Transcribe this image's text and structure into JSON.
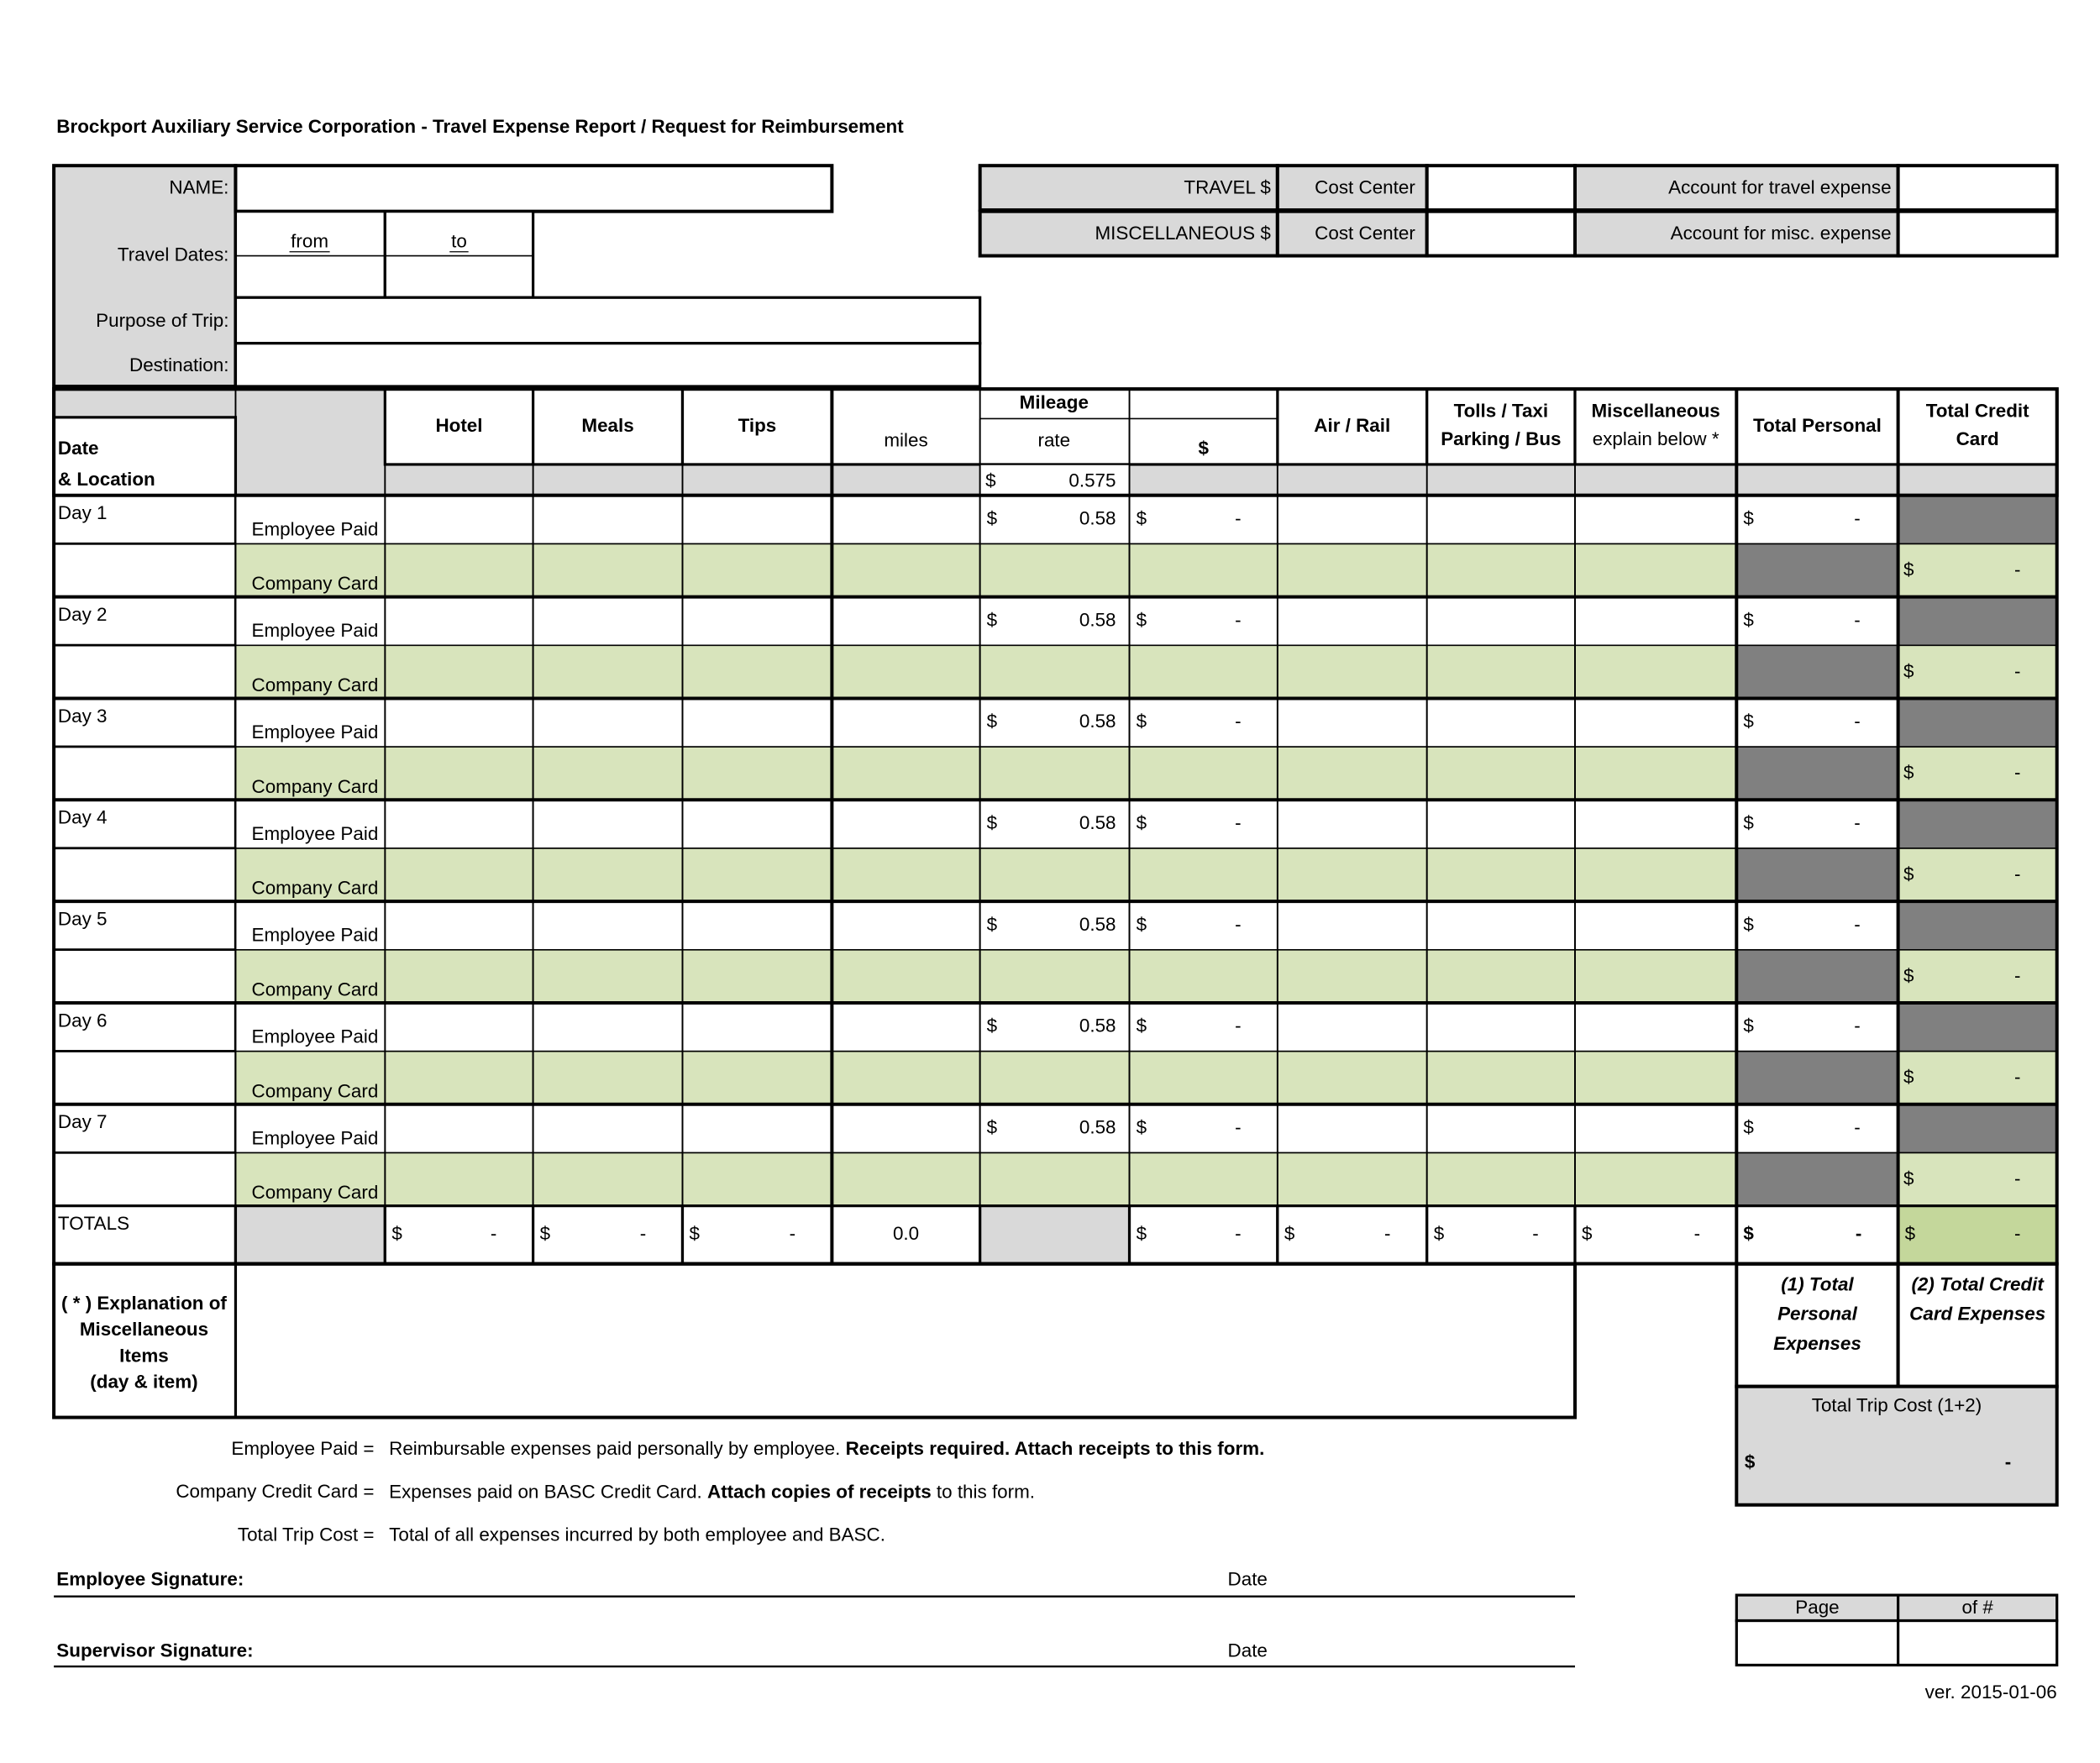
{
  "header": {
    "title": "Brockport Auxiliary Service Corporation  - Travel Expense Report / Request for Reimbursement"
  },
  "info": {
    "name_label": "NAME:",
    "travel_dates_label": "Travel Dates:",
    "from": "from",
    "to": "to",
    "purpose_label": "Purpose of Trip:",
    "destination_label": "Destination:"
  },
  "accounts": {
    "travel": "TRAVEL $",
    "misc": "MISCELLANEOUS $",
    "cost_center_travel": "Cost Center",
    "cost_center_misc": "Cost Center",
    "account_travel": "Account for travel expense",
    "account_misc": "Account for misc. expense"
  },
  "table": {
    "date_header": "Date",
    "location_header": "& Location",
    "columns": {
      "hotel": [
        "Hotel"
      ],
      "meals": [
        "Meals"
      ],
      "tips": [
        "Tips"
      ],
      "air_rail": [
        "Air / Rail"
      ],
      "tolls": [
        "Tolls / Taxi",
        "Parking / Bus"
      ],
      "misc": [
        "Miscellaneous",
        "explain below *"
      ],
      "personal": [
        "Total Personal"
      ],
      "credit": [
        "Total Credit",
        "Card"
      ]
    },
    "mileage": {
      "header": "Mileage",
      "miles": "miles",
      "rate": "rate",
      "dollar": "$",
      "rate_currency": "$",
      "rate_value": "0.575"
    },
    "days": [
      {
        "label": "Day 1",
        "employee_paid": "Employee Paid",
        "company_card": "Company Card",
        "rate_currency": "$",
        "rate": "0.58",
        "mileage_currency": "$",
        "mileage": "-",
        "personal_currency": "$",
        "personal": "-",
        "credit_currency": "$",
        "credit": "-"
      },
      {
        "label": "Day 2",
        "employee_paid": "Employee Paid",
        "company_card": "Company Card",
        "rate_currency": "$",
        "rate": "0.58",
        "mileage_currency": "$",
        "mileage": "-",
        "personal_currency": "$",
        "personal": "-",
        "credit_currency": "$",
        "credit": "-"
      },
      {
        "label": "Day 3",
        "employee_paid": "Employee Paid",
        "company_card": "Company Card",
        "rate_currency": "$",
        "rate": "0.58",
        "mileage_currency": "$",
        "mileage": "-",
        "personal_currency": "$",
        "personal": "-",
        "credit_currency": "$",
        "credit": "-"
      },
      {
        "label": "Day 4",
        "employee_paid": "Employee Paid",
        "company_card": "Company Card",
        "rate_currency": "$",
        "rate": "0.58",
        "mileage_currency": "$",
        "mileage": "-",
        "personal_currency": "$",
        "personal": "-",
        "credit_currency": "$",
        "credit": "-"
      },
      {
        "label": "Day 5",
        "employee_paid": "Employee Paid",
        "company_card": "Company Card",
        "rate_currency": "$",
        "rate": "0.58",
        "mileage_currency": "$",
        "mileage": "-",
        "personal_currency": "$",
        "personal": "-",
        "credit_currency": "$",
        "credit": "-"
      },
      {
        "label": "Day 6",
        "employee_paid": "Employee Paid",
        "company_card": "Company Card",
        "rate_currency": "$",
        "rate": "0.58",
        "mileage_currency": "$",
        "mileage": "-",
        "personal_currency": "$",
        "personal": "-",
        "credit_currency": "$",
        "credit": "-"
      },
      {
        "label": "Day 7",
        "employee_paid": "Employee Paid",
        "company_card": "Company Card",
        "rate_currency": "$",
        "rate": "0.58",
        "mileage_currency": "$",
        "mileage": "-",
        "personal_currency": "$",
        "personal": "-",
        "credit_currency": "$",
        "credit": "-"
      }
    ],
    "totals": {
      "label": "TOTALS",
      "hotel": {
        "currency": "$",
        "amount": "-"
      },
      "meals": {
        "currency": "$",
        "amount": "-"
      },
      "tips": {
        "currency": "$",
        "amount": "-"
      },
      "miles": {
        "amount": "0.0"
      },
      "mileage": {
        "currency": "$",
        "amount": "-"
      },
      "air_rail": {
        "currency": "$",
        "amount": "-"
      },
      "tolls": {
        "currency": "$",
        "amount": "-"
      },
      "misc": {
        "currency": "$",
        "amount": "-"
      },
      "personal": {
        "currency": "$",
        "amount": "-"
      },
      "credit": {
        "currency": "$",
        "amount": "-"
      }
    }
  },
  "explanation": {
    "lines": [
      "( * ) Explanation of",
      "Miscellaneous",
      "Items",
      "(day & item)"
    ]
  },
  "summary": {
    "personal": [
      "(1) Total",
      "Personal",
      "Expenses"
    ],
    "credit": [
      "(2) Total Credit",
      "Card Expenses"
    ],
    "trip_label": "Total Trip Cost (1+2)",
    "trip_currency": "$",
    "trip_amount": "-"
  },
  "legend": [
    {
      "term": "Employee Paid =",
      "description": [
        {
          "text": "Reimbursable expenses paid personally by employee. ",
          "bold": false
        },
        {
          "text": "Receipts required. Attach receipts to this form.",
          "bold": true
        }
      ]
    },
    {
      "term": "Company Credit Card =",
      "description": [
        {
          "text": "Expenses paid on BASC Credit Card. ",
          "bold": false
        },
        {
          "text": "Attach copies of receipts",
          "bold": true
        },
        {
          "text": " to this form.",
          "bold": false
        }
      ]
    },
    {
      "term": "Total Trip Cost =",
      "description": [
        {
          "text": "Total of all expenses incurred by both employee and BASC.",
          "bold": false
        }
      ]
    }
  ],
  "signatures": {
    "employee": "Employee Signature:",
    "employee_date": "Date",
    "supervisor": "Supervisor Signature:",
    "supervisor_date": "Date"
  },
  "page_box": {
    "page": "Page",
    "of": "of #"
  },
  "version": "ver. 2015-01-06"
}
